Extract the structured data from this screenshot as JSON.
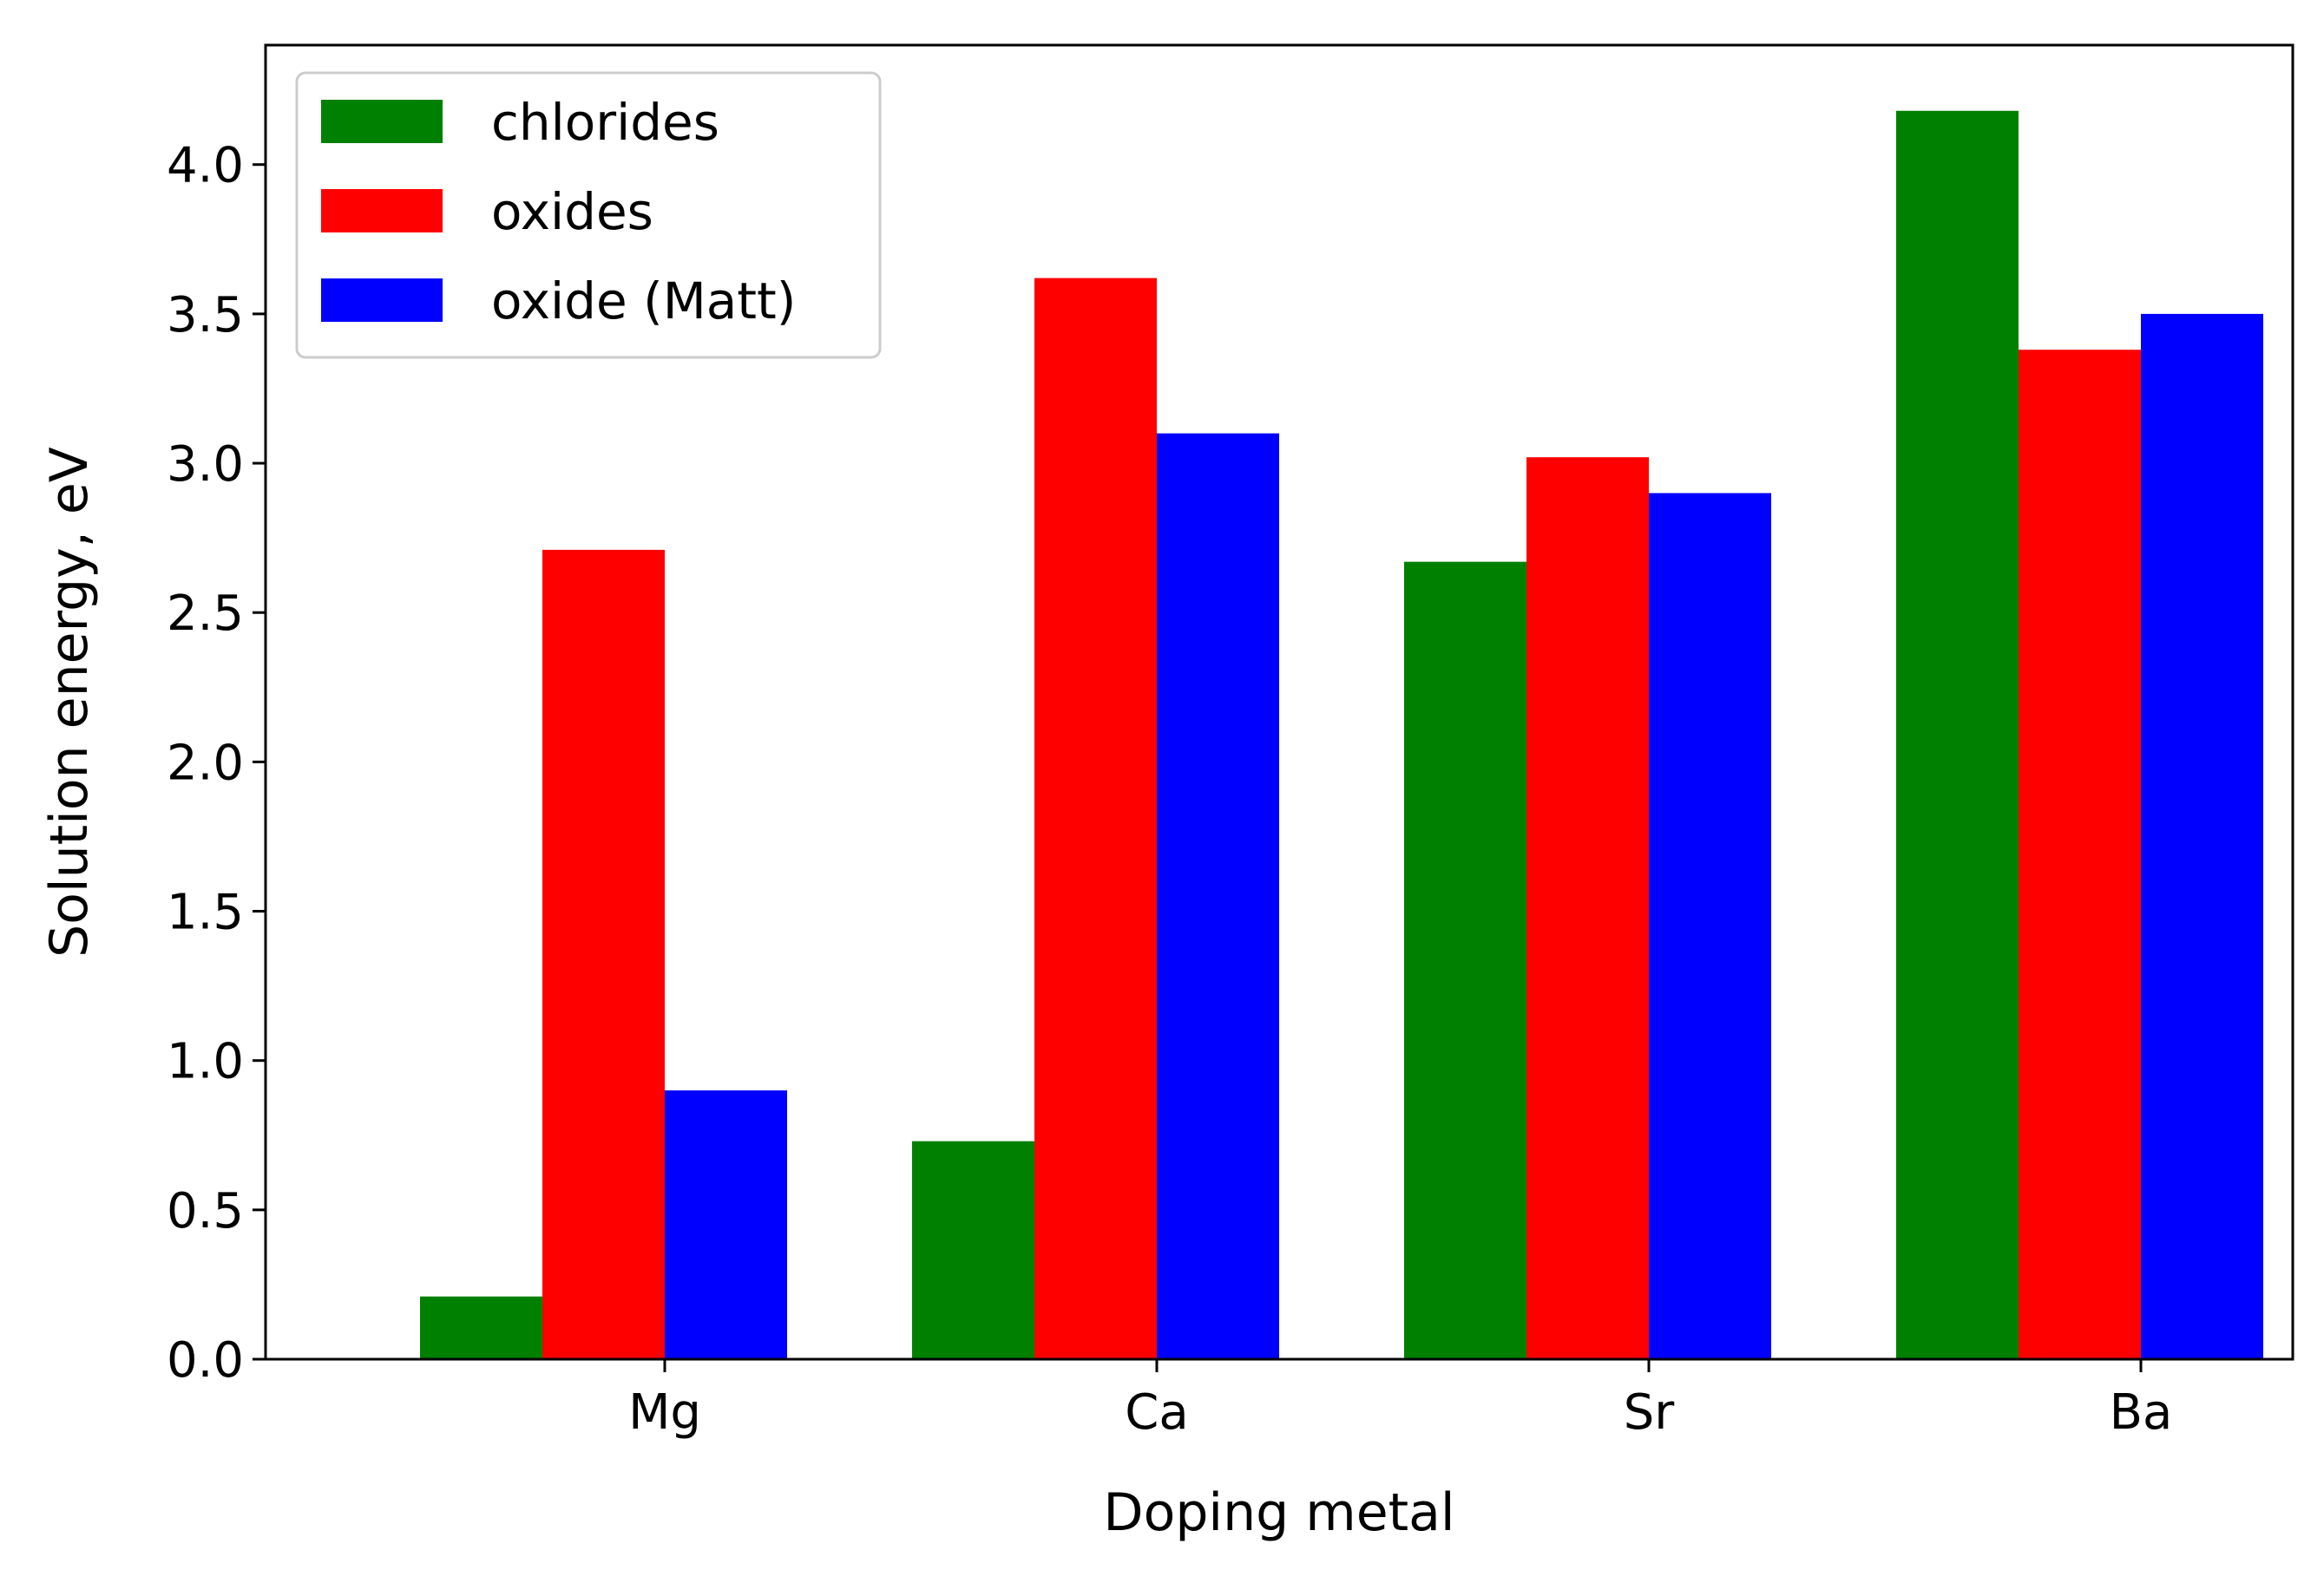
{
  "chart_data": {
    "type": "bar",
    "title": "",
    "xlabel": "Doping metal",
    "ylabel": "Solution energy, eV",
    "categories": [
      "Mg",
      "Ca",
      "Sr",
      "Ba"
    ],
    "ylim": [
      0,
      4.4
    ],
    "yticks": [
      0.0,
      0.5,
      1.0,
      1.5,
      2.0,
      2.5,
      3.0,
      3.5,
      4.0
    ],
    "ytick_labels": [
      "0.0",
      "0.5",
      "1.0",
      "1.5",
      "2.0",
      "2.5",
      "3.0",
      "3.5",
      "4.0"
    ],
    "grid": false,
    "legend_position": "top-left",
    "series": [
      {
        "name": "chlorides",
        "color": "#008000",
        "values": [
          0.21,
          0.73,
          2.67,
          4.18
        ]
      },
      {
        "name": "oxides",
        "color": "#ff0000",
        "values": [
          2.71,
          3.62,
          3.02,
          3.38
        ]
      },
      {
        "name": "oxide (Matt)",
        "color": "#0000ff",
        "values": [
          0.9,
          3.1,
          2.9,
          3.5
        ]
      }
    ]
  }
}
